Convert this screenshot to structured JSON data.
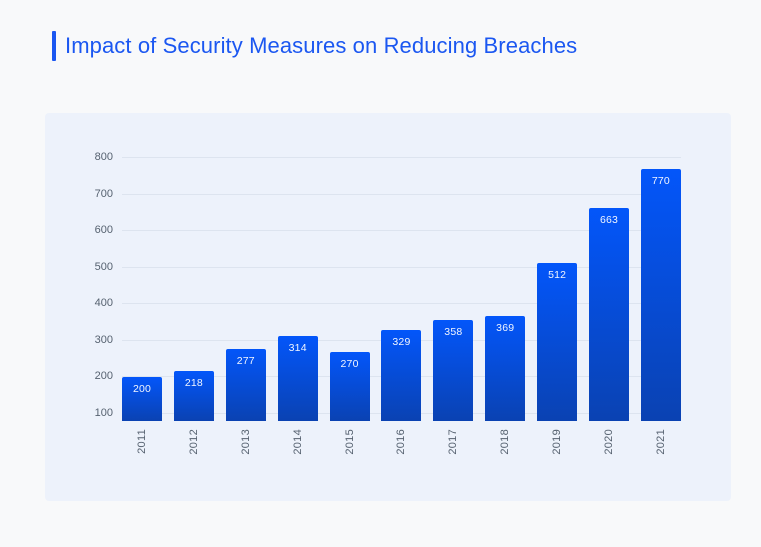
{
  "page": {
    "title": "Impact of Security Measures on Reducing Breaches"
  },
  "colors": {
    "page_bg": "#f8f9fa",
    "panel_bg": "#edf2fb",
    "gridline": "#dde4ef",
    "axis_label": "#566270",
    "title": "#1b57f1",
    "accent_bar": "#1b57f1",
    "bar_top": "#0356fa",
    "bar_bottom": "#0a42b2",
    "bar_value_label": "#f2f6ff"
  },
  "chart_data": {
    "type": "bar",
    "title": "Impact of Security Measures on Reducing Breaches",
    "categories": [
      "2011",
      "2012",
      "2013",
      "2014",
      "2015",
      "2016",
      "2017",
      "2018",
      "2019",
      "2020",
      "2021"
    ],
    "values": [
      200,
      218,
      277,
      314,
      270,
      329,
      358,
      369,
      512,
      663,
      770
    ],
    "xlabel": "",
    "ylabel": "",
    "ylim": [
      80,
      820
    ],
    "yticks": [
      100,
      200,
      300,
      400,
      500,
      600,
      700,
      800
    ],
    "grid": true,
    "legend": false,
    "value_labels": "inside-top-white",
    "x_tick_rotation": -90,
    "bar_color_gradient": [
      "#0356fa",
      "#0a42b2"
    ]
  }
}
